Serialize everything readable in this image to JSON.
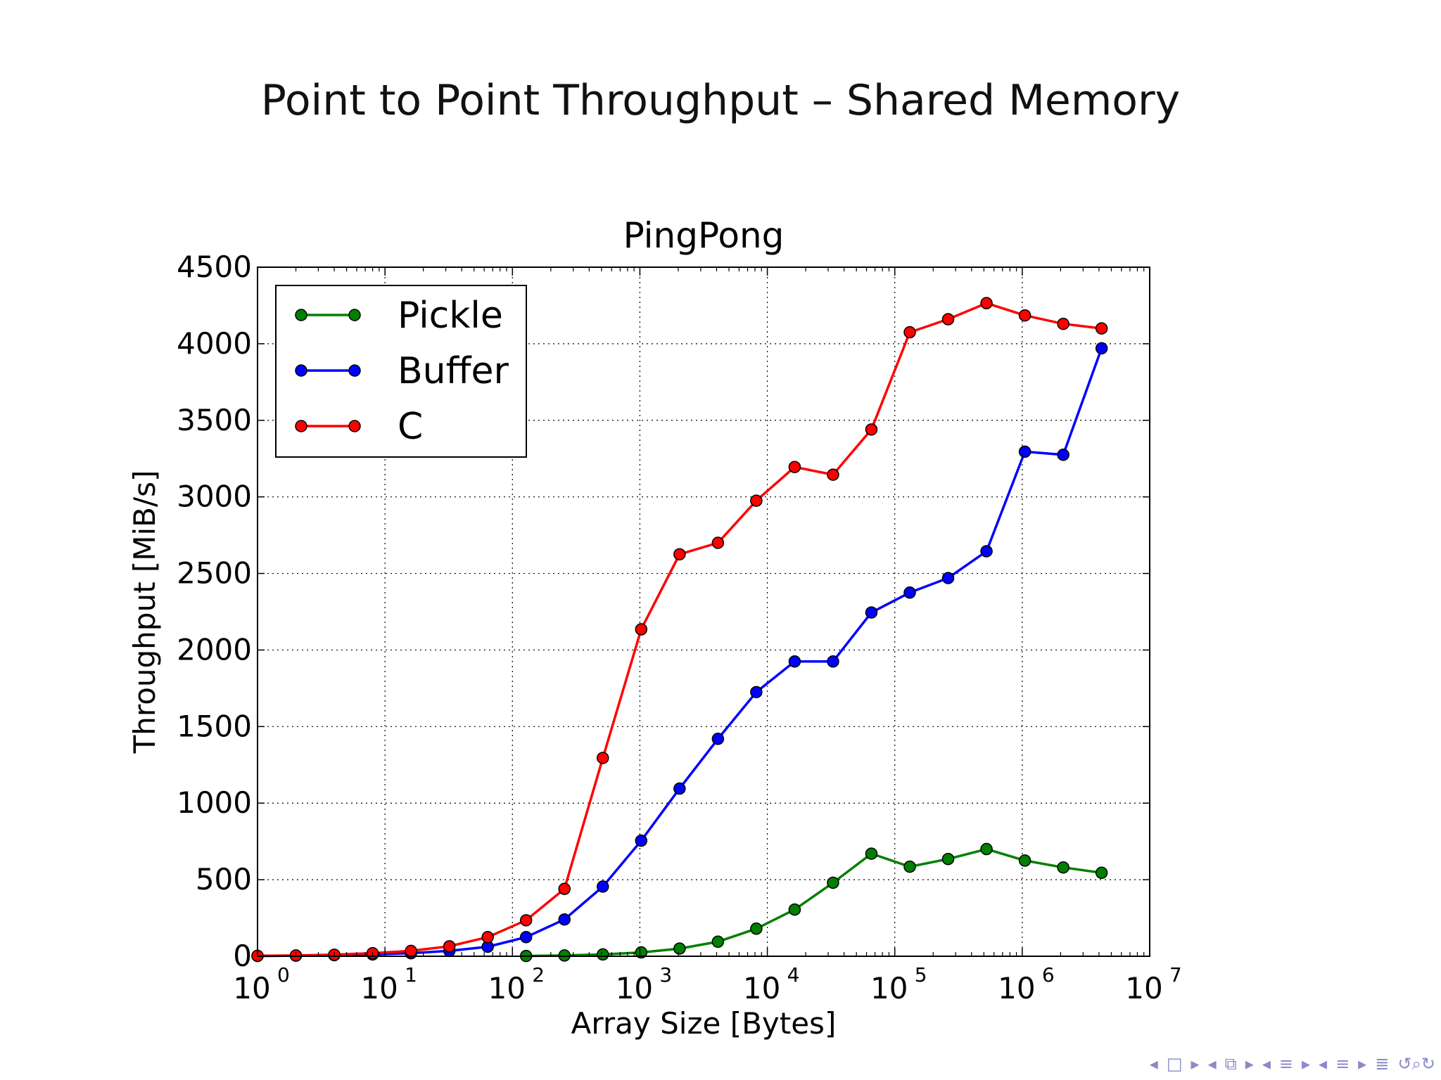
{
  "slide": {
    "title": "Point to Point Throughput – Shared Memory"
  },
  "chart_data": {
    "type": "line",
    "title": "PingPong",
    "xlabel": "Array Size [Bytes]",
    "ylabel": "Throughput [MiB/s]",
    "xscale": "log",
    "xlim": [
      1,
      10000000
    ],
    "ylim": [
      0,
      4500
    ],
    "grid": true,
    "legend_position": "top-left",
    "x_tick_labels": [
      {
        "base": "10",
        "exp": "0"
      },
      {
        "base": "10",
        "exp": "1"
      },
      {
        "base": "10",
        "exp": "2"
      },
      {
        "base": "10",
        "exp": "3"
      },
      {
        "base": "10",
        "exp": "4"
      },
      {
        "base": "10",
        "exp": "5"
      },
      {
        "base": "10",
        "exp": "6"
      },
      {
        "base": "10",
        "exp": "7"
      }
    ],
    "y_ticks": [
      "0",
      "500",
      "1000",
      "1500",
      "2000",
      "2500",
      "3000",
      "3500",
      "4000",
      "4500"
    ],
    "series": [
      {
        "name": "Pickle",
        "color": "#008000",
        "x": [
          128,
          256,
          512,
          1024,
          2048,
          4096,
          8192,
          16384,
          32768,
          65536,
          131072,
          262144,
          524288,
          1048576,
          2097152,
          4194304
        ],
        "y": [
          2,
          5,
          12,
          25,
          50,
          95,
          180,
          305,
          480,
          670,
          585,
          635,
          700,
          625,
          580,
          545
        ]
      },
      {
        "name": "Buffer",
        "color": "#0000ff",
        "x": [
          1,
          2,
          4,
          8,
          16,
          32,
          64,
          128,
          256,
          512,
          1024,
          2048,
          4096,
          8192,
          16384,
          32768,
          65536,
          131072,
          262144,
          524288,
          1048576,
          2097152,
          4194304
        ],
        "y": [
          2,
          4,
          7,
          12,
          20,
          35,
          62,
          125,
          240,
          455,
          755,
          1095,
          1420,
          1725,
          1925,
          1925,
          2245,
          2375,
          2470,
          2645,
          3295,
          3275,
          3970
        ]
      },
      {
        "name": "C",
        "color": "#ff0000",
        "x": [
          1,
          2,
          4,
          8,
          16,
          32,
          64,
          128,
          256,
          512,
          1024,
          2048,
          4096,
          8192,
          16384,
          32768,
          65536,
          131072,
          262144,
          524288,
          1048576,
          2097152,
          4194304
        ],
        "y": [
          3,
          5,
          10,
          20,
          35,
          65,
          125,
          235,
          440,
          1295,
          2135,
          2625,
          2700,
          2975,
          3195,
          3145,
          3440,
          4075,
          4160,
          4265,
          4185,
          4130,
          4100
        ]
      }
    ]
  },
  "nav": {
    "icons": [
      "left-arrow-icon",
      "frame-icon",
      "right-arrow-icon",
      "left-arrow-icon",
      "subsection-icon",
      "right-arrow-icon",
      "left-arrow-icon",
      "section-icon",
      "right-arrow-icon",
      "left-arrow-icon",
      "outline-icon",
      "right-arrow-icon",
      "align-icon",
      "search-icon"
    ],
    "symbols": [
      "◂",
      "□",
      "▸",
      "◂",
      "⧉",
      "▸",
      "◂",
      "≡",
      "▸",
      "◂",
      "≡",
      "▸",
      "≣",
      "↺⌕↻"
    ]
  }
}
